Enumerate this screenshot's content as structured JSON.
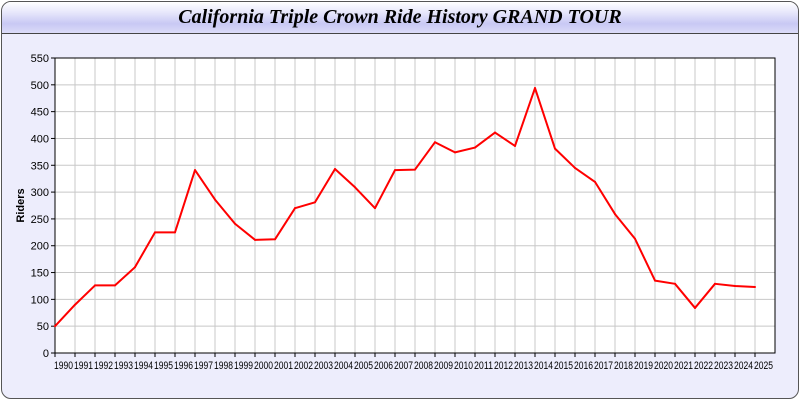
{
  "title": "California Triple Crown Ride History GRAND TOUR",
  "chart_data": {
    "type": "line",
    "title": "California Triple Crown Ride History GRAND TOUR",
    "xlabel": "",
    "ylabel": "Riders",
    "xlim": [
      1990,
      2026
    ],
    "ylim": [
      0,
      550
    ],
    "yticks": [
      0,
      50,
      100,
      150,
      200,
      250,
      300,
      350,
      400,
      450,
      500,
      550
    ],
    "grid": true,
    "line_color": "#ff0000",
    "x": [
      1990,
      1991,
      1992,
      1993,
      1994,
      1995,
      1996,
      1997,
      1998,
      1999,
      2000,
      2001,
      2002,
      2003,
      2004,
      2005,
      2006,
      2007,
      2008,
      2009,
      2010,
      2011,
      2012,
      2013,
      2014,
      2015,
      2016,
      2017,
      2018,
      2019,
      2020,
      2021,
      2022,
      2023,
      2024,
      2025
    ],
    "series": [
      {
        "values": [
          50,
          90,
          126,
          126,
          160,
          225,
          225,
          341,
          286,
          241,
          211,
          212,
          270,
          281,
          343,
          309,
          270,
          341,
          342,
          393,
          374,
          383,
          411,
          386,
          494,
          381,
          345,
          319,
          259,
          213,
          135,
          129,
          84,
          129,
          125,
          123
        ]
      }
    ]
  }
}
